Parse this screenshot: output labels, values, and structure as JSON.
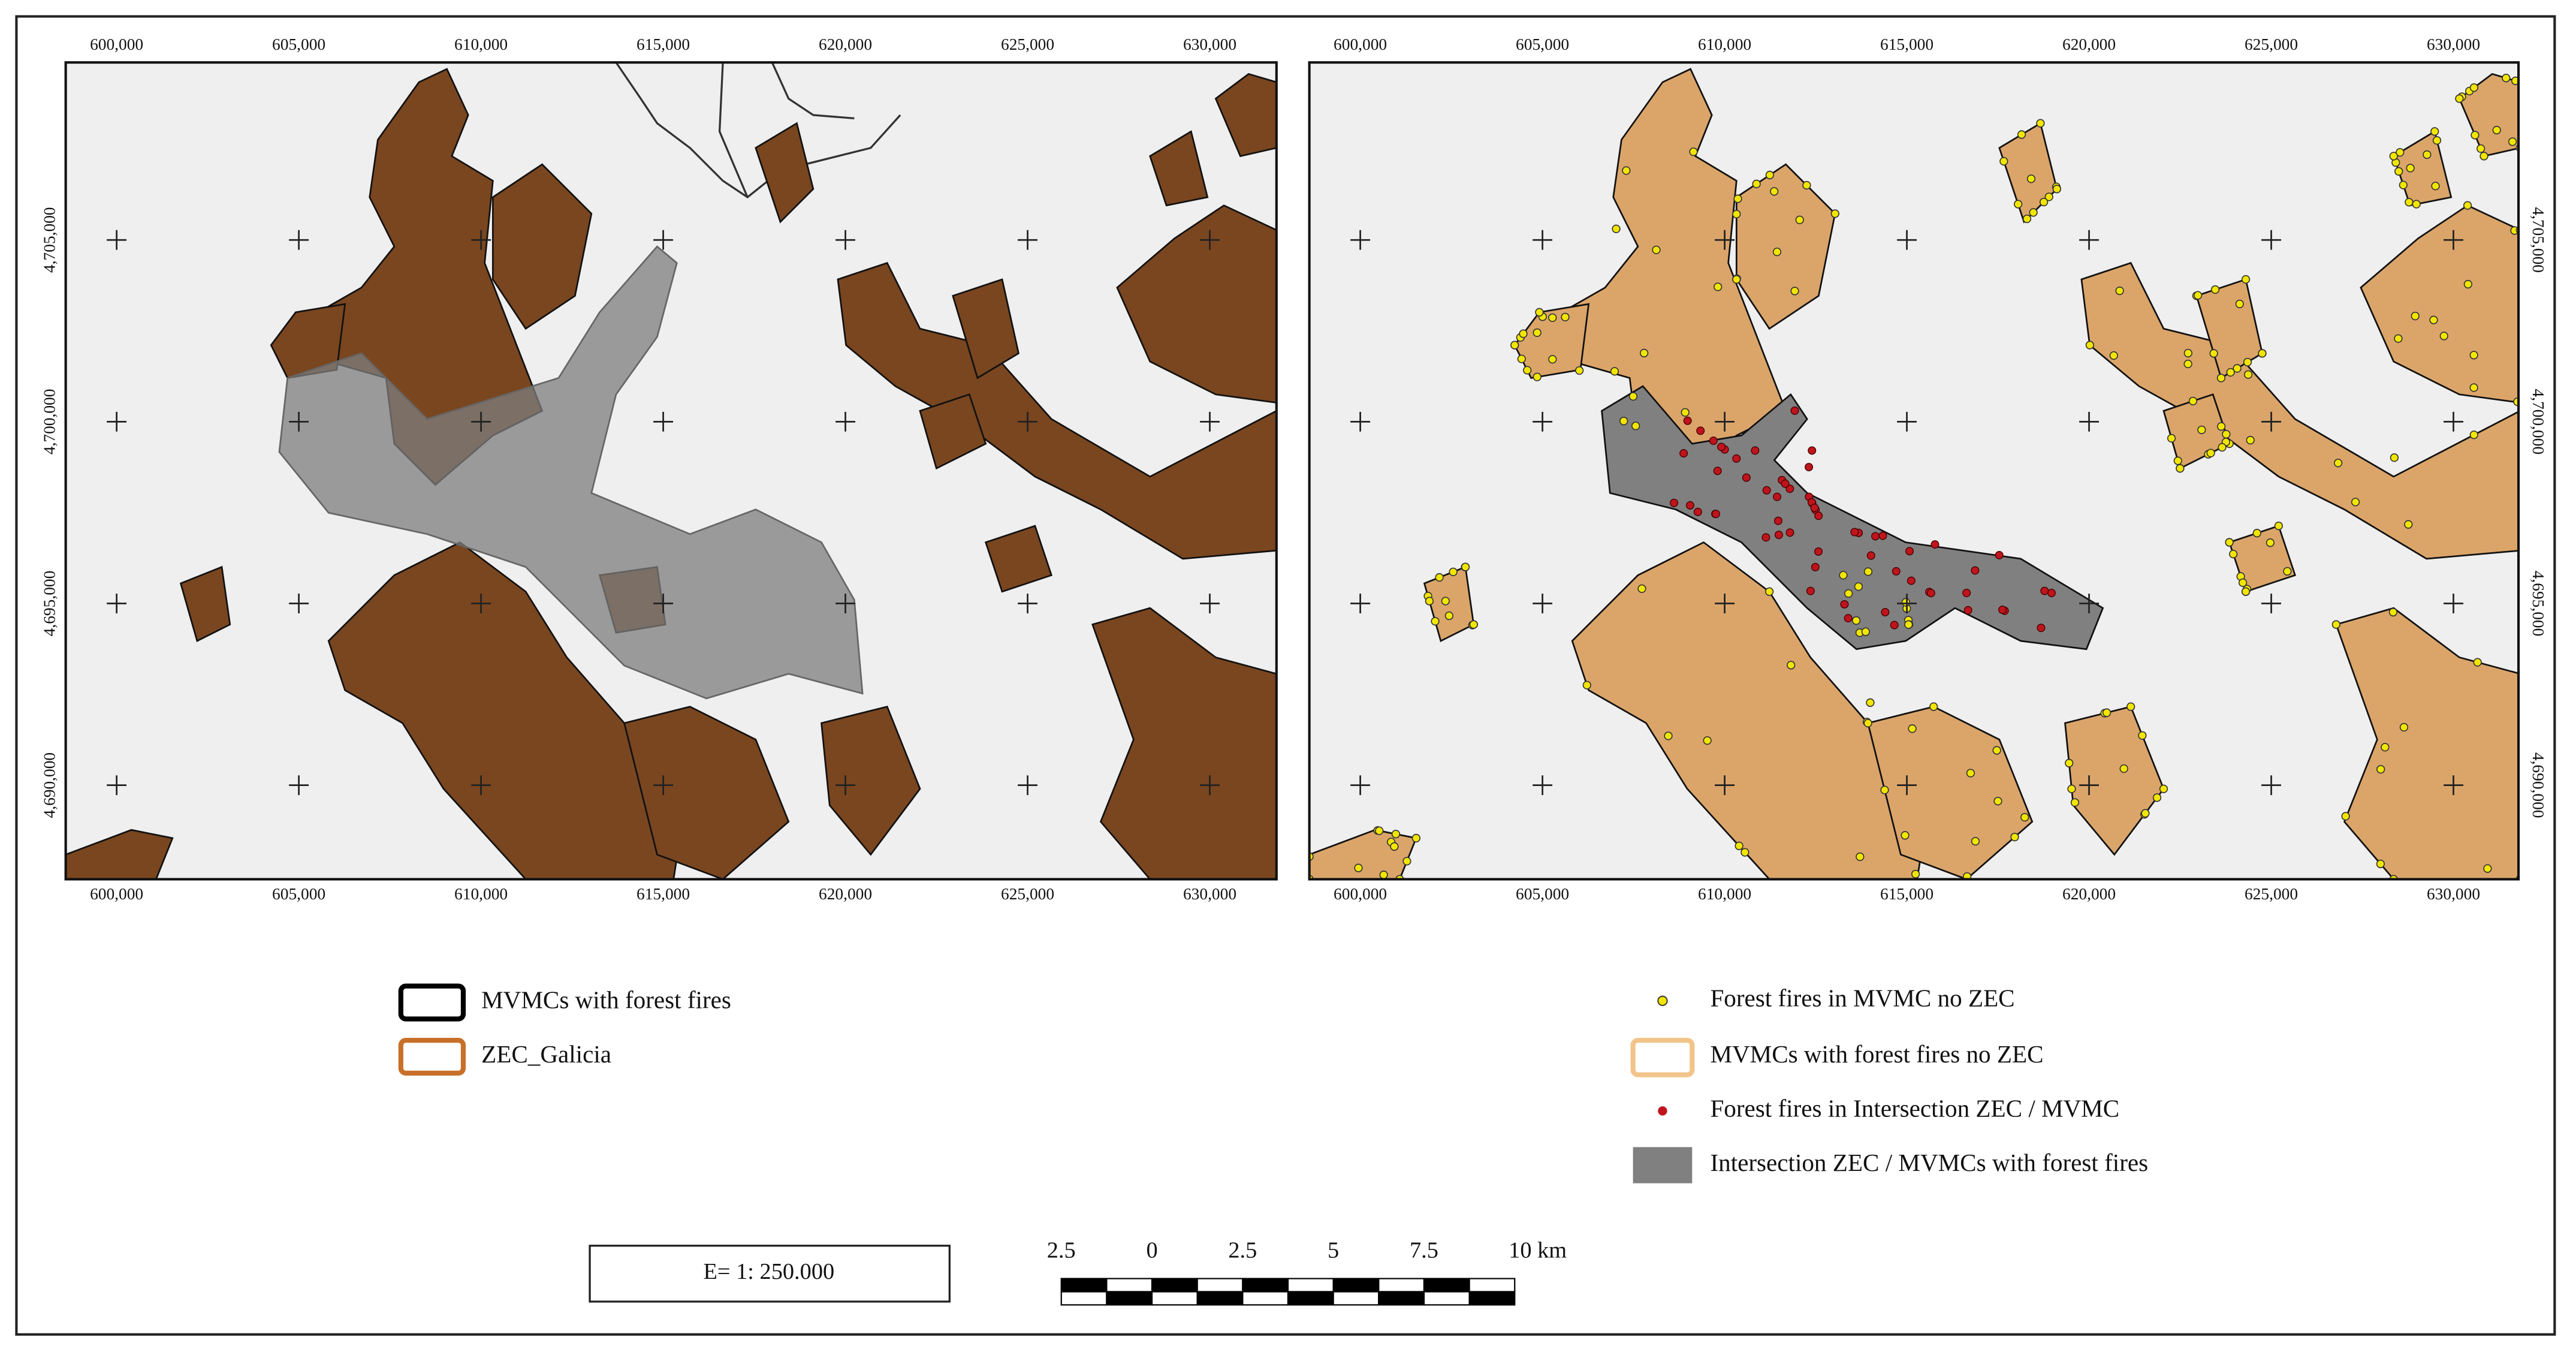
{
  "maps": [
    {
      "x_labels": [
        "600,000",
        "605,000",
        "610,000",
        "615,000",
        "620,000",
        "625,000",
        "630,000"
      ],
      "y_labels": [
        "4,705,000",
        "4,700,000",
        "4,695,000",
        "4,690,000"
      ]
    },
    {
      "x_labels": [
        "600,000",
        "605,000",
        "610,000",
        "615,000",
        "620,000",
        "625,000",
        "630,000"
      ],
      "y_labels": [
        "4,705,000",
        "4,700,000",
        "4,695,000",
        "4,690,000"
      ]
    }
  ],
  "legend_left": [
    "MVMCs with forest fires",
    "ZEC_Galicia"
  ],
  "legend_right": [
    "Forest fires in MVMC no ZEC",
    "MVMCs with forest fires no ZEC",
    "Forest fires in Intersection ZEC / MVMC",
    "Intersection ZEC / MVMCs with forest fires"
  ],
  "scale_text": "E= 1: 250.000",
  "scale_bar_labels": [
    "2.5",
    "0",
    "2.5",
    "5",
    "7.5",
    "10 km"
  ]
}
